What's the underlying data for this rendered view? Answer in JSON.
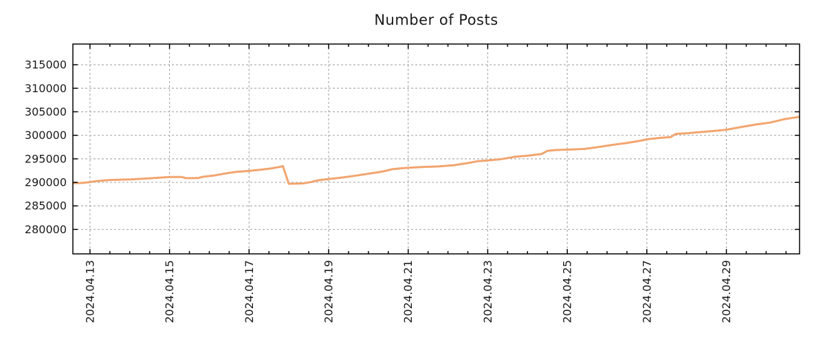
{
  "chart_data": {
    "type": "line",
    "title": "Number of Posts",
    "xlabel": "",
    "ylabel": "",
    "legend": "none",
    "grid": {
      "show": true,
      "style": "dashed",
      "color": "#ababab"
    },
    "x_axis": {
      "tick_labels": [
        "2024.04.13",
        "2024.04.15",
        "2024.04.17",
        "2024.04.19",
        "2024.04.21",
        "2024.04.23",
        "2024.04.25",
        "2024.04.27",
        "2024.04.29"
      ],
      "tick_days": [
        0,
        2,
        4,
        6,
        8,
        10,
        12,
        14,
        16
      ],
      "minor_tick_interval_days": 0.5,
      "range_days": [
        -0.43,
        17.84
      ],
      "label_rotation_deg": -90
    },
    "y_axis": {
      "tick_values": [
        280000,
        285000,
        290000,
        295000,
        300000,
        305000,
        310000,
        315000
      ],
      "range": [
        274800,
        319400
      ]
    },
    "series": [
      {
        "name": "posts",
        "color": "#f2a46e",
        "line_width": 3,
        "points": [
          [
            -0.43,
            289820
          ],
          [
            -0.2,
            289880
          ],
          [
            0,
            290050
          ],
          [
            0.16,
            290250
          ],
          [
            0.5,
            290500
          ],
          [
            1.02,
            290640
          ],
          [
            1.45,
            290830
          ],
          [
            1.71,
            290980
          ],
          [
            2,
            291150
          ],
          [
            2.3,
            291150
          ],
          [
            2.42,
            290880
          ],
          [
            2.72,
            290920
          ],
          [
            2.83,
            291180
          ],
          [
            3.1,
            291430
          ],
          [
            3.43,
            291930
          ],
          [
            3.69,
            292250
          ],
          [
            4,
            292430
          ],
          [
            4.3,
            292700
          ],
          [
            4.55,
            292950
          ],
          [
            4.75,
            293250
          ],
          [
            4.85,
            293450
          ],
          [
            5.0,
            289700
          ],
          [
            5.35,
            289780
          ],
          [
            5.55,
            290050
          ],
          [
            5.74,
            290450
          ],
          [
            6,
            290700
          ],
          [
            6.38,
            291080
          ],
          [
            6.64,
            291370
          ],
          [
            6.9,
            291700
          ],
          [
            7.24,
            292150
          ],
          [
            7.42,
            292400
          ],
          [
            7.59,
            292780
          ],
          [
            7.85,
            293000
          ],
          [
            8,
            293100
          ],
          [
            8.35,
            293250
          ],
          [
            8.8,
            293400
          ],
          [
            9.15,
            293650
          ],
          [
            9.5,
            294100
          ],
          [
            9.75,
            294500
          ],
          [
            10,
            294650
          ],
          [
            10.35,
            294950
          ],
          [
            10.7,
            295450
          ],
          [
            11.04,
            295700
          ],
          [
            11.36,
            296050
          ],
          [
            11.5,
            296700
          ],
          [
            11.7,
            296870
          ],
          [
            12,
            296950
          ],
          [
            12.43,
            297100
          ],
          [
            12.77,
            297500
          ],
          [
            13.12,
            297950
          ],
          [
            13.47,
            298350
          ],
          [
            13.81,
            298800
          ],
          [
            14,
            299150
          ],
          [
            14.33,
            299450
          ],
          [
            14.59,
            299600
          ],
          [
            14.73,
            300300
          ],
          [
            15.02,
            300450
          ],
          [
            15.37,
            300700
          ],
          [
            15.71,
            300950
          ],
          [
            16,
            301200
          ],
          [
            16.4,
            301800
          ],
          [
            16.75,
            302300
          ],
          [
            17.1,
            302700
          ],
          [
            17.44,
            303400
          ],
          [
            17.84,
            303950
          ]
        ]
      }
    ],
    "style": {
      "border_color": "#000000",
      "tick_color": "#000000",
      "text_color": "#1a1a1a",
      "background": "#ffffff"
    }
  }
}
